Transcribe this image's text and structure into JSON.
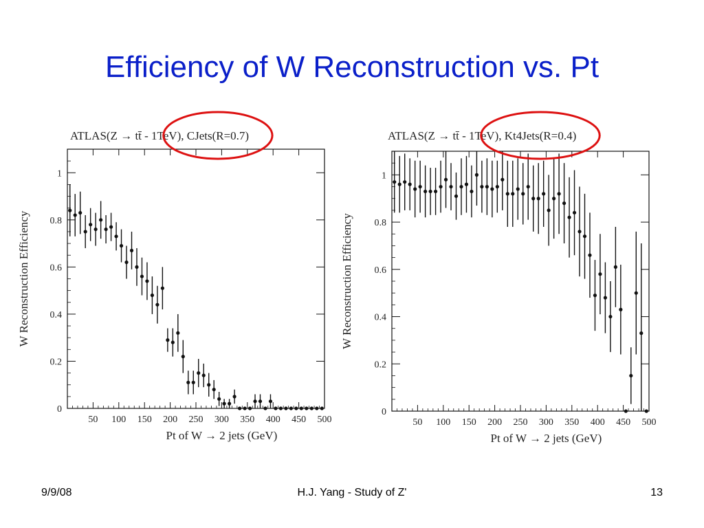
{
  "slide": {
    "title": "Efficiency of W Reconstruction vs. Pt",
    "footer_left": "9/9/08",
    "footer_center": "H.J. Yang - Study of Z'",
    "footer_right": "13",
    "highlight_color": "#dd1111",
    "title_color": "#0a1fc9"
  },
  "chart_data": [
    {
      "type": "scatter",
      "title": "ATLAS(Z → tt̄ - 1TeV), CJets(R=0.7)",
      "title_prefix": "ATLAS(Z → tt̄ - 1TeV), ",
      "title_highlight": "CJets(R=0.7)",
      "xlabel": "Pt of W → 2 jets (GeV)",
      "ylabel": "W Reconstruction Efficiency",
      "xlim": [
        0,
        500
      ],
      "ylim": [
        0,
        1.1
      ],
      "xticks": [
        "50",
        "100",
        "150",
        "200",
        "250",
        "300",
        "350",
        "400",
        "450",
        "500"
      ],
      "yticks": [
        "0",
        "0.2",
        "0.4",
        "0.6",
        "0.8",
        "1"
      ],
      "grid": false,
      "x": [
        5,
        15,
        25,
        35,
        45,
        55,
        65,
        75,
        85,
        95,
        105,
        115,
        125,
        135,
        145,
        155,
        165,
        175,
        185,
        195,
        205,
        215,
        225,
        235,
        245,
        255,
        265,
        275,
        285,
        295,
        305,
        315,
        325,
        335,
        345,
        355,
        365,
        375,
        385,
        395,
        405,
        415,
        425,
        435,
        445,
        455,
        465,
        475,
        485,
        495
      ],
      "y": [
        0.84,
        0.82,
        0.83,
        0.75,
        0.78,
        0.76,
        0.8,
        0.76,
        0.77,
        0.73,
        0.69,
        0.62,
        0.67,
        0.6,
        0.56,
        0.54,
        0.48,
        0.44,
        0.51,
        0.29,
        0.28,
        0.32,
        0.22,
        0.11,
        0.11,
        0.15,
        0.14,
        0.1,
        0.08,
        0.04,
        0.02,
        0.02,
        0.05,
        0.0,
        0.0,
        0.0,
        0.03,
        0.03,
        0.0,
        0.03,
        0.0,
        0.0,
        0.0,
        0.0,
        0.0,
        0.0,
        0.0,
        0.0,
        0.0,
        0.0
      ],
      "yerr": [
        0.11,
        0.09,
        0.09,
        0.07,
        0.07,
        0.07,
        0.08,
        0.06,
        0.06,
        0.06,
        0.07,
        0.07,
        0.08,
        0.08,
        0.08,
        0.08,
        0.08,
        0.08,
        0.09,
        0.05,
        0.06,
        0.08,
        0.07,
        0.05,
        0.05,
        0.06,
        0.05,
        0.05,
        0.04,
        0.03,
        0.02,
        0.02,
        0.03,
        0.0,
        0.0,
        0.0,
        0.03,
        0.03,
        0.0,
        0.03,
        0.0,
        0.0,
        0.0,
        0.0,
        0.0,
        0.0,
        0.0,
        0.0,
        0.0,
        0.0
      ]
    },
    {
      "type": "scatter",
      "title": "ATLAS(Z → tt̄ - 1TeV), Kt4Jets(R=0.4)",
      "title_prefix": "ATLAS(Z → tt̄ - 1TeV), ",
      "title_highlight": "Kt4Jets(R=0.4)",
      "xlabel": "Pt of W → 2 jets (GeV)",
      "ylabel": "W Reconstruction Efficiency",
      "xlim": [
        0,
        500
      ],
      "ylim": [
        0,
        1.1
      ],
      "xticks": [
        "50",
        "100",
        "150",
        "200",
        "250",
        "300",
        "350",
        "400",
        "450",
        "500"
      ],
      "yticks": [
        "0",
        "0.2",
        "0.4",
        "0.6",
        "0.8",
        "1"
      ],
      "grid": false,
      "x": [
        5,
        15,
        25,
        35,
        45,
        55,
        65,
        75,
        85,
        95,
        105,
        115,
        125,
        135,
        145,
        155,
        165,
        175,
        185,
        195,
        205,
        215,
        225,
        235,
        245,
        255,
        265,
        275,
        285,
        295,
        305,
        315,
        325,
        335,
        345,
        355,
        365,
        375,
        385,
        395,
        405,
        415,
        425,
        435,
        445,
        455,
        465,
        475,
        485,
        495
      ],
      "y": [
        0.97,
        0.96,
        0.97,
        0.96,
        0.94,
        0.95,
        0.93,
        0.93,
        0.93,
        0.95,
        0.98,
        0.95,
        0.91,
        0.95,
        0.96,
        0.93,
        1.0,
        0.95,
        0.95,
        0.94,
        0.95,
        0.98,
        0.92,
        0.92,
        0.94,
        0.92,
        0.95,
        0.9,
        0.9,
        0.92,
        0.85,
        0.9,
        0.92,
        0.88,
        0.82,
        0.84,
        0.76,
        0.74,
        0.66,
        0.49,
        0.58,
        0.48,
        0.4,
        0.61,
        0.43,
        0.0,
        0.15,
        0.5,
        0.33,
        0.0
      ],
      "yerr": [
        0.13,
        0.12,
        0.12,
        0.11,
        0.12,
        0.11,
        0.11,
        0.1,
        0.1,
        0.11,
        0.12,
        0.1,
        0.1,
        0.12,
        0.12,
        0.11,
        0.13,
        0.11,
        0.12,
        0.12,
        0.11,
        0.13,
        0.14,
        0.14,
        0.13,
        0.13,
        0.14,
        0.14,
        0.15,
        0.14,
        0.15,
        0.17,
        0.17,
        0.17,
        0.17,
        0.18,
        0.19,
        0.18,
        0.18,
        0.15,
        0.17,
        0.15,
        0.15,
        0.17,
        0.19,
        0.0,
        0.12,
        0.26,
        0.38,
        0.0
      ]
    }
  ]
}
